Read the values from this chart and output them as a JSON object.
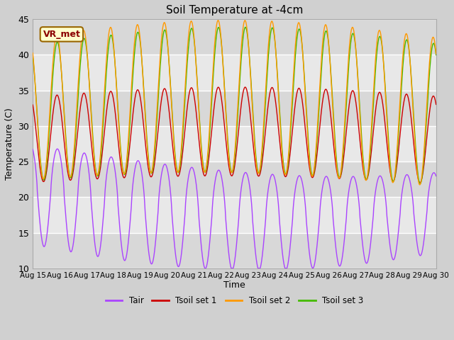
{
  "title": "Soil Temperature at -4cm",
  "xlabel": "Time",
  "ylabel": "Temperature (C)",
  "ylim": [
    10,
    45
  ],
  "n_days": 15,
  "x_tick_labels": [
    "Aug 15",
    "Aug 16",
    "Aug 17",
    "Aug 18",
    "Aug 19",
    "Aug 20",
    "Aug 21",
    "Aug 22",
    "Aug 23",
    "Aug 24",
    "Aug 25",
    "Aug 26",
    "Aug 27",
    "Aug 28",
    "Aug 29",
    "Aug 30"
  ],
  "yticks": [
    10,
    15,
    20,
    25,
    30,
    35,
    40,
    45
  ],
  "colors": {
    "Tair": "#aa44ff",
    "Tsoil_set1": "#cc0000",
    "Tsoil_set2": "#ff9900",
    "Tsoil_set3": "#44bb00"
  },
  "legend_labels": [
    "Tair",
    "Tsoil set 1",
    "Tsoil set 2",
    "Tsoil set 3"
  ],
  "annotation_text": "VR_met",
  "annotation_color": "#8B0000",
  "annotation_bg": "#ffffcc",
  "annotation_edge": "#996600",
  "fig_facecolor": "#d0d0d0",
  "plot_facecolor": "#e8e8e8",
  "band_colors": [
    "#d8d8d8",
    "#e8e8e8"
  ],
  "grid_color": "#ffffff",
  "samples_per_day": 144
}
